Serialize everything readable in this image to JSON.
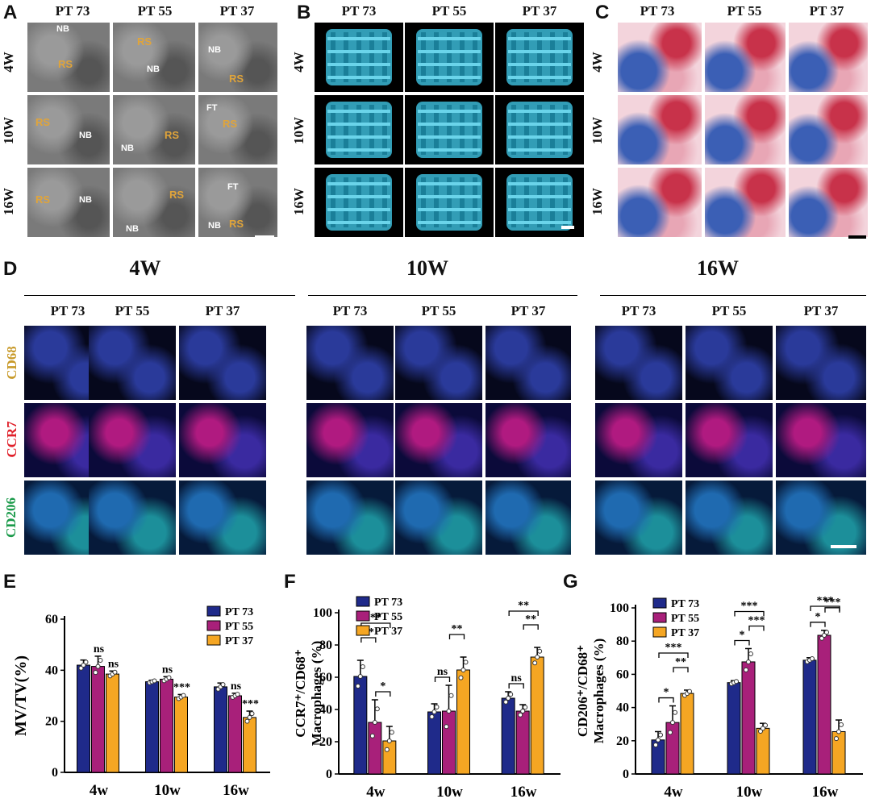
{
  "panels": {
    "A": "A",
    "B": "B",
    "C": "C",
    "D": "D",
    "E": "E",
    "F": "F",
    "G": "G"
  },
  "groups": [
    "PT 73",
    "PT 55",
    "PT 37"
  ],
  "weeks": [
    "4W",
    "10W",
    "16W"
  ],
  "sem_labels": {
    "rs": "RS",
    "nb": "NB",
    "ft": "FT"
  },
  "if_markers": {
    "cd68": "CD68",
    "ccr7": "CCR7",
    "cd206": "CD206"
  },
  "colors": {
    "pt73": "#1f2a8a",
    "pt55": "#a8207a",
    "pt37": "#f5a623",
    "cd68": "#c89a2a",
    "ccr7": "#e0202a",
    "cd206": "#1a9a4a",
    "ct": "#3bb8d6"
  },
  "chart_data": [
    {
      "type": "bar",
      "panel": "E",
      "categories": [
        "4w",
        "10w",
        "16w"
      ],
      "ylabel": "MV/TV(%)",
      "ylim": [
        0,
        60
      ],
      "yticks": [
        "0",
        "20",
        "40",
        "60"
      ],
      "series": [
        {
          "name": "PT 73",
          "values": [
            42,
            35.5,
            33.5
          ],
          "errors": [
            2,
            0.6,
            1.5
          ]
        },
        {
          "name": "PT 55",
          "values": [
            41.5,
            36.5,
            30
          ],
          "errors": [
            4,
            1,
            1
          ]
        },
        {
          "name": "PT 37",
          "values": [
            38.5,
            29.5,
            21.5
          ],
          "errors": [
            1.2,
            1,
            2.5
          ]
        }
      ],
      "annotations": [
        {
          "category": 0,
          "series": 1,
          "text": "ns"
        },
        {
          "category": 0,
          "series": 2,
          "text": "ns"
        },
        {
          "category": 1,
          "series": 1,
          "text": "ns"
        },
        {
          "category": 1,
          "series": 2,
          "text": "***"
        },
        {
          "category": 2,
          "series": 1,
          "text": "ns"
        },
        {
          "category": 2,
          "series": 2,
          "text": "***"
        }
      ],
      "legend": "top-right"
    },
    {
      "type": "bar",
      "panel": "F",
      "categories": [
        "4w",
        "10w",
        "16w"
      ],
      "ylabel": "CCR7⁺/CD68⁺ Macrophages (%)",
      "ylim": [
        0,
        100
      ],
      "yticks": [
        "0",
        "20",
        "40",
        "60",
        "80",
        "100"
      ],
      "series": [
        {
          "name": "PT 73",
          "values": [
            60.5,
            38.5,
            47
          ],
          "errors": [
            10,
            5,
            4
          ]
        },
        {
          "name": "PT 55",
          "values": [
            32,
            39,
            39
          ],
          "errors": [
            14,
            16,
            4
          ]
        },
        {
          "name": "PT 37",
          "values": [
            20.5,
            64.5,
            72.5
          ],
          "errors": [
            9,
            8,
            6
          ]
        }
      ],
      "brackets": [
        {
          "category": 0,
          "from": 0,
          "to": 1,
          "text": "**",
          "level": 1
        },
        {
          "category": 0,
          "from": 0,
          "to": 2,
          "text": "**",
          "level": 2
        },
        {
          "category": 0,
          "from": 1,
          "to": 2,
          "text": "*",
          "level": 0
        },
        {
          "category": 1,
          "from": 0,
          "to": 1,
          "text": "ns",
          "level": 0
        },
        {
          "category": 1,
          "from": 1,
          "to": 2,
          "text": "**",
          "level": 1
        },
        {
          "category": 2,
          "from": 0,
          "to": 1,
          "text": "ns",
          "level": 0
        },
        {
          "category": 2,
          "from": 1,
          "to": 2,
          "text": "**",
          "level": 1
        },
        {
          "category": 2,
          "from": 0,
          "to": 2,
          "text": "**",
          "level": 2
        }
      ],
      "legend": "top-left"
    },
    {
      "type": "bar",
      "panel": "G",
      "categories": [
        "4w",
        "10w",
        "16w"
      ],
      "ylabel": "CD206⁺/CD68⁺ Macrophages (%)",
      "ylim": [
        0,
        100
      ],
      "yticks": [
        "0",
        "20",
        "40",
        "60",
        "80",
        "100"
      ],
      "series": [
        {
          "name": "PT 73",
          "values": [
            20.5,
            55,
            68.5
          ],
          "errors": [
            5,
            1.2,
            1.5
          ]
        },
        {
          "name": "PT 55",
          "values": [
            31,
            67.5,
            83.5
          ],
          "errors": [
            10,
            8,
            3
          ]
        },
        {
          "name": "PT 37",
          "values": [
            48.5,
            27.5,
            25.5
          ],
          "errors": [
            2,
            3,
            7
          ]
        }
      ],
      "brackets": [
        {
          "category": 0,
          "from": 0,
          "to": 1,
          "text": "*",
          "level": 0
        },
        {
          "category": 0,
          "from": 1,
          "to": 2,
          "text": "**",
          "level": 1
        },
        {
          "category": 0,
          "from": 0,
          "to": 2,
          "text": "***",
          "level": 2
        },
        {
          "category": 1,
          "from": 0,
          "to": 1,
          "text": "*",
          "level": 0
        },
        {
          "category": 1,
          "from": 1,
          "to": 2,
          "text": "***",
          "level": 1
        },
        {
          "category": 1,
          "from": 0,
          "to": 2,
          "text": "***",
          "level": 2
        },
        {
          "category": 2,
          "from": 0,
          "to": 1,
          "text": "*",
          "level": 0
        },
        {
          "category": 2,
          "from": 1,
          "to": 2,
          "text": "***",
          "level": 1
        },
        {
          "category": 2,
          "from": 0,
          "to": 2,
          "text": "***",
          "level": 2
        }
      ],
      "legend": "top-left"
    }
  ]
}
